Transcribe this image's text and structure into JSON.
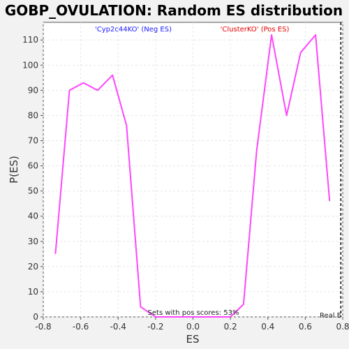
{
  "chart_data": {
    "type": "line",
    "title": "GOBP_OVULATION: Random ES distribution",
    "xlabel": "ES",
    "ylabel": "P(ES)",
    "xlim": [
      -0.8,
      0.8
    ],
    "ylim": [
      0,
      117
    ],
    "grid": true,
    "x_ticks": [
      -0.8,
      -0.6,
      -0.4,
      -0.2,
      0.0,
      0.2,
      0.4,
      0.6,
      0.8
    ],
    "x_tick_labels": [
      "-0.8",
      "-0.6",
      "-0.4",
      "-0.2",
      "0.0",
      "0.2",
      "0.4",
      "0.6",
      "0.8"
    ],
    "y_ticks": [
      0,
      10,
      20,
      30,
      40,
      50,
      60,
      70,
      80,
      90,
      100,
      110
    ],
    "y_tick_labels": [
      "0",
      "10",
      "20",
      "30",
      "40",
      "50",
      "60",
      "70",
      "80",
      "90",
      "100",
      "110"
    ],
    "series": [
      {
        "color": "#ff44ff",
        "points": [
          [
            -0.735,
            25
          ],
          [
            -0.66,
            90
          ],
          [
            -0.585,
            93
          ],
          [
            -0.51,
            90
          ],
          [
            -0.43,
            96
          ],
          [
            -0.355,
            76
          ],
          [
            -0.28,
            4
          ],
          [
            -0.2,
            0
          ],
          [
            -0.13,
            0
          ],
          [
            0.2,
            0
          ],
          [
            0.27,
            5
          ],
          [
            0.34,
            66
          ],
          [
            0.42,
            112
          ],
          [
            0.5,
            80
          ],
          [
            0.575,
            105
          ],
          [
            0.655,
            112
          ],
          [
            0.73,
            46
          ]
        ]
      }
    ],
    "legend_neg": "'Cyp2c44KO' (Neg ES)",
    "legend_pos": "'ClusterKO' (Pos ES)",
    "annotation": "Sets with pos scores: 53%",
    "real_es_label": "Real E",
    "real_es_value": 0.79,
    "colors": {
      "line": "#ff44ff",
      "neg": "#1a1aff",
      "pos": "#e60000",
      "plot_bg": "#ffffff",
      "page_bg": "#f2f2f2"
    }
  }
}
